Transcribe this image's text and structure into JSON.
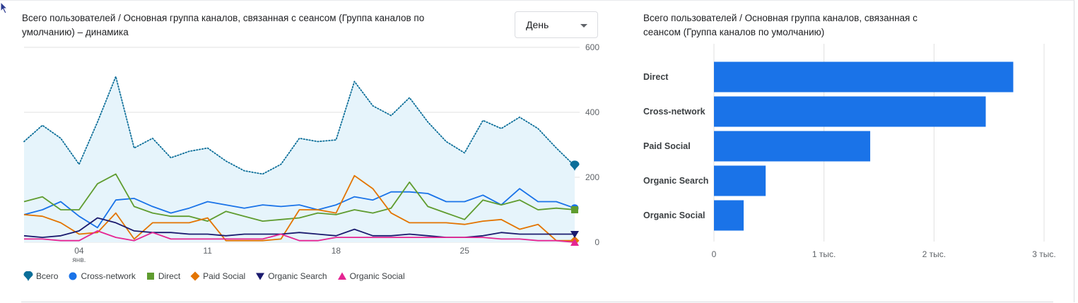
{
  "line_panel": {
    "title": "Всего пользователей / Основная группа каналов, связанная с сеансом (Группа каналов по умолчанию) – динамика",
    "dropdown_value": "День"
  },
  "bar_panel": {
    "title": "Всего пользователей / Основная группа каналов, связанная с сеансом (Группа каналов по умолчанию)"
  },
  "legend": [
    {
      "label": "Всего",
      "color": "#0b6e99",
      "marker": "teardrop"
    },
    {
      "label": "Cross-network",
      "color": "#1a73e8",
      "marker": "circle"
    },
    {
      "label": "Direct",
      "color": "#5f9c2f",
      "marker": "square"
    },
    {
      "label": "Paid Social",
      "color": "#e37400",
      "marker": "diamond"
    },
    {
      "label": "Organic Search",
      "color": "#1a1a6e",
      "marker": "triangle-down"
    },
    {
      "label": "Organic Social",
      "color": "#e52592",
      "marker": "triangle-up"
    }
  ],
  "chart_data": [
    {
      "type": "line",
      "x_tick_labels": [
        {
          "label": "04",
          "sublabel": "янв.",
          "index": 3
        },
        {
          "label": "11",
          "index": 10
        },
        {
          "label": "18",
          "index": 17
        },
        {
          "label": "25",
          "index": 24
        }
      ],
      "ylim": [
        0,
        600
      ],
      "y_ticks": [
        0,
        200,
        400,
        600
      ],
      "grid": true,
      "series": [
        {
          "name": "Всего",
          "color": "#0b6e99",
          "style": "dotted-area",
          "values": [
            310,
            360,
            320,
            240,
            370,
            510,
            290,
            320,
            260,
            280,
            290,
            250,
            220,
            210,
            240,
            320,
            310,
            315,
            495,
            420,
            390,
            445,
            370,
            310,
            275,
            375,
            350,
            385,
            350,
            290,
            235
          ]
        },
        {
          "name": "Cross-network",
          "color": "#1a73e8",
          "values": [
            85,
            100,
            125,
            80,
            45,
            130,
            135,
            110,
            90,
            105,
            125,
            115,
            105,
            115,
            110,
            115,
            100,
            115,
            140,
            130,
            155,
            155,
            150,
            125,
            125,
            145,
            115,
            165,
            125,
            125,
            105
          ]
        },
        {
          "name": "Direct",
          "color": "#5f9c2f",
          "values": [
            125,
            140,
            100,
            100,
            180,
            210,
            110,
            90,
            80,
            80,
            65,
            95,
            80,
            65,
            70,
            75,
            90,
            85,
            100,
            90,
            105,
            185,
            110,
            90,
            70,
            130,
            115,
            130,
            100,
            105,
            100
          ]
        },
        {
          "name": "Paid Social",
          "color": "#e37400",
          "values": [
            85,
            80,
            60,
            25,
            30,
            90,
            10,
            60,
            60,
            60,
            75,
            5,
            5,
            5,
            10,
            100,
            100,
            90,
            205,
            165,
            90,
            60,
            60,
            60,
            55,
            65,
            70,
            40,
            55,
            5,
            5
          ]
        },
        {
          "name": "Organic Search",
          "color": "#1a1a6e",
          "values": [
            20,
            15,
            20,
            35,
            75,
            60,
            35,
            30,
            30,
            25,
            25,
            20,
            25,
            25,
            25,
            30,
            25,
            20,
            40,
            20,
            20,
            25,
            20,
            15,
            15,
            20,
            30,
            25,
            25,
            25,
            25
          ]
        },
        {
          "name": "Organic Social",
          "color": "#e52592",
          "values": [
            10,
            10,
            5,
            5,
            35,
            15,
            5,
            30,
            10,
            10,
            10,
            10,
            10,
            10,
            25,
            5,
            5,
            15,
            15,
            15,
            15,
            15,
            15,
            15,
            15,
            15,
            10,
            10,
            5,
            5,
            0
          ]
        }
      ]
    },
    {
      "type": "bar",
      "orientation": "horizontal",
      "categories": [
        "Direct",
        "Cross-network",
        "Paid Social",
        "Organic Search",
        "Organic Social"
      ],
      "values": [
        2720,
        2470,
        1420,
        470,
        270
      ],
      "color": "#1a73e8",
      "xlim": [
        0,
        3000
      ],
      "x_ticks": [
        0,
        1000,
        2000,
        3000
      ],
      "x_tick_labels": [
        "0",
        "1 тыс.",
        "2 тыс.",
        "3 тыс."
      ],
      "grid": true
    }
  ]
}
